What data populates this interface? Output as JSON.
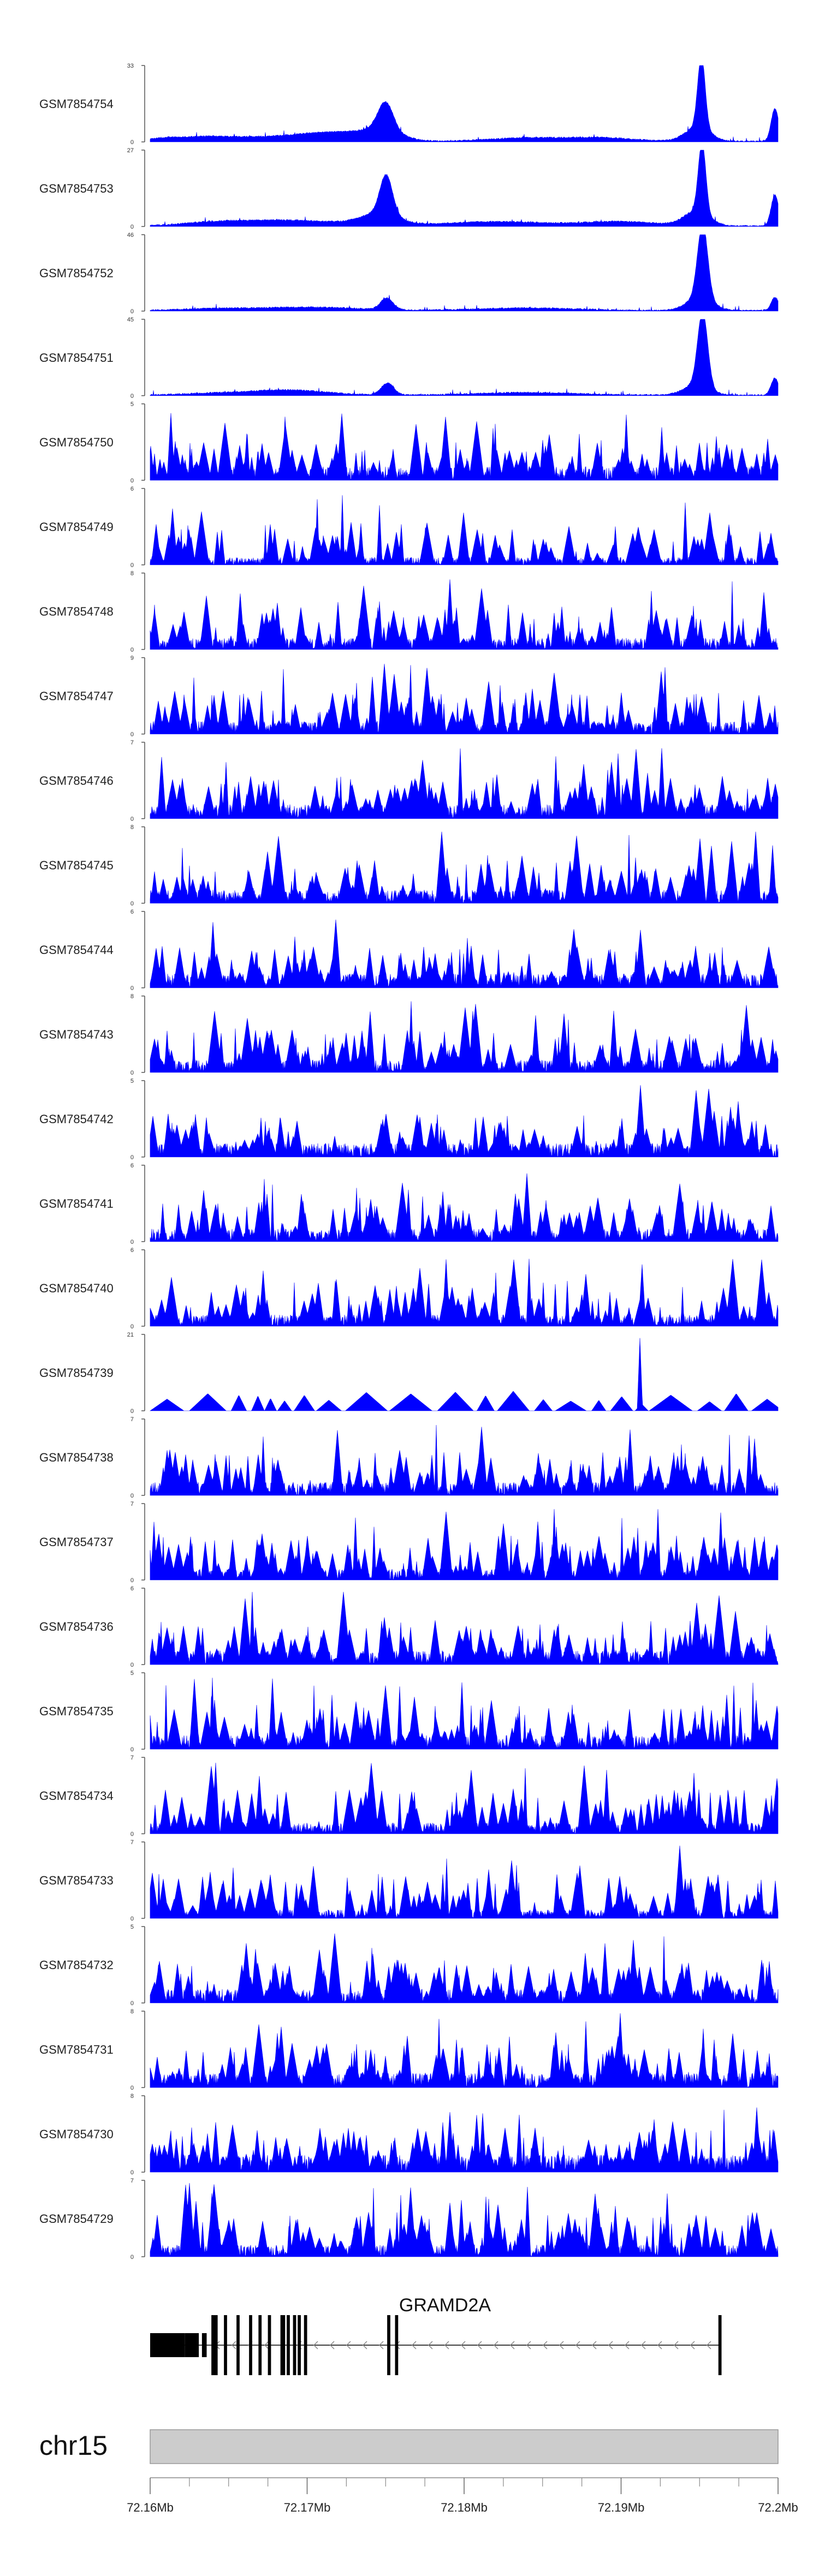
{
  "chart_data": {
    "type": "area",
    "region": {
      "chrom": "chr15",
      "start_mb": 72.16,
      "end_mb": 72.2
    },
    "colors": {
      "signal": "#0000ff",
      "axis": "#555555",
      "gene": "#000000",
      "ideogram": "#cccccc"
    },
    "tracks": [
      {
        "name": "GSM7854754",
        "ymax": 33,
        "peaks": [
          [
            0.02,
            1,
            0.02
          ],
          [
            0.08,
            1.5,
            0.04
          ],
          [
            0.2,
            2,
            0.08
          ],
          [
            0.3,
            3,
            0.05
          ],
          [
            0.375,
            12,
            0.012
          ],
          [
            0.37,
            4,
            0.03
          ],
          [
            0.6,
            1.5,
            0.06
          ],
          [
            0.72,
            1.5,
            0.05
          ],
          [
            0.878,
            31,
            0.006
          ],
          [
            0.872,
            6,
            0.02
          ],
          [
            0.995,
            14,
            0.006
          ]
        ]
      },
      {
        "name": "GSM7854753",
        "ymax": 27,
        "peaks": [
          [
            0.1,
            1,
            0.05
          ],
          [
            0.22,
            2,
            0.08
          ],
          [
            0.376,
            14,
            0.01
          ],
          [
            0.365,
            4,
            0.03
          ],
          [
            0.55,
            1.5,
            0.08
          ],
          [
            0.75,
            1.5,
            0.06
          ],
          [
            0.879,
            25,
            0.006
          ],
          [
            0.87,
            5,
            0.02
          ],
          [
            0.995,
            11,
            0.006
          ]
        ]
      },
      {
        "name": "GSM7854752",
        "ymax": 46,
        "peaks": [
          [
            0.1,
            1,
            0.05
          ],
          [
            0.25,
            2,
            0.08
          ],
          [
            0.377,
            7,
            0.01
          ],
          [
            0.6,
            1.5,
            0.08
          ],
          [
            0.88,
            45,
            0.008
          ],
          [
            0.875,
            8,
            0.02
          ],
          [
            0.995,
            8,
            0.006
          ]
        ]
      },
      {
        "name": "GSM7854751",
        "ymax": 45,
        "peaks": [
          [
            0.1,
            1,
            0.05
          ],
          [
            0.22,
            3,
            0.06
          ],
          [
            0.378,
            7,
            0.01
          ],
          [
            0.6,
            1.5,
            0.08
          ],
          [
            0.88,
            44,
            0.008
          ],
          [
            0.87,
            6,
            0.02
          ],
          [
            0.995,
            10,
            0.006
          ]
        ]
      },
      {
        "name": "GSM7854750",
        "ymax": 5,
        "noise": true,
        "count": 140,
        "base": 0.9,
        "spike": 4.5
      },
      {
        "name": "GSM7854749",
        "ymax": 6,
        "noise": true,
        "count": 90,
        "base": 0.6,
        "spike": 5.5
      },
      {
        "name": "GSM7854748",
        "ymax": 8,
        "noise": true,
        "count": 110,
        "base": 1.2,
        "spike": 7.5
      },
      {
        "name": "GSM7854747",
        "ymax": 9,
        "noise": true,
        "count": 130,
        "base": 1.5,
        "spike": 8.5
      },
      {
        "name": "GSM7854746",
        "ymax": 7,
        "noise": true,
        "count": 120,
        "base": 1.3,
        "spike": 6.5
      },
      {
        "name": "GSM7854745",
        "ymax": 8,
        "noise": true,
        "count": 120,
        "base": 1.4,
        "spike": 7.5
      },
      {
        "name": "GSM7854744",
        "ymax": 6,
        "noise": true,
        "count": 120,
        "base": 1.1,
        "spike": 5.5
      },
      {
        "name": "GSM7854743",
        "ymax": 8,
        "noise": true,
        "count": 120,
        "base": 1.3,
        "spike": 7.5
      },
      {
        "name": "GSM7854742",
        "ymax": 5,
        "noise": true,
        "count": 120,
        "base": 0.9,
        "spike": 4.8
      },
      {
        "name": "GSM7854741",
        "ymax": 6,
        "noise": true,
        "count": 115,
        "base": 1.0,
        "spike": 5.8
      },
      {
        "name": "GSM7854740",
        "ymax": 6,
        "noise": true,
        "count": 100,
        "base": 0.9,
        "spike": 5.8
      },
      {
        "name": "GSM7854739",
        "ymax": 21,
        "noise": false,
        "triangles": true,
        "count": 34,
        "base": 4.5,
        "spike": 20
      },
      {
        "name": "GSM7854738",
        "ymax": 7,
        "noise": true,
        "count": 120,
        "base": 1.2,
        "spike": 6.8
      },
      {
        "name": "GSM7854737",
        "ymax": 7,
        "noise": true,
        "count": 130,
        "base": 1.0,
        "spike": 6.8
      },
      {
        "name": "GSM7854736",
        "ymax": 6,
        "noise": true,
        "count": 120,
        "base": 1.1,
        "spike": 5.8
      },
      {
        "name": "GSM7854735",
        "ymax": 5,
        "noise": true,
        "count": 120,
        "base": 0.9,
        "spike": 4.8
      },
      {
        "name": "GSM7854734",
        "ymax": 7,
        "noise": true,
        "count": 110,
        "base": 1.0,
        "spike": 6.8
      },
      {
        "name": "GSM7854733",
        "ymax": 7,
        "noise": true,
        "count": 110,
        "base": 0.8,
        "spike": 6.8
      },
      {
        "name": "GSM7854732",
        "ymax": 5,
        "noise": true,
        "count": 120,
        "base": 0.9,
        "spike": 4.8
      },
      {
        "name": "GSM7854731",
        "ymax": 8,
        "noise": true,
        "count": 130,
        "base": 1.5,
        "spike": 7.8
      },
      {
        "name": "GSM7854730",
        "ymax": 8,
        "noise": true,
        "count": 140,
        "base": 1.8,
        "spike": 7.8
      },
      {
        "name": "GSM7854729",
        "ymax": 7,
        "noise": true,
        "count": 120,
        "base": 1.1,
        "spike": 6.8
      }
    ],
    "gene": {
      "name": "GRAMD2A",
      "strand": "-",
      "start_mb": 72.16,
      "end_mb": 72.1963,
      "exons": [
        [
          72.16,
          72.1622
        ],
        [
          72.1622,
          72.1631
        ],
        [
          72.1633,
          72.1636
        ],
        [
          72.1639,
          72.1643
        ],
        [
          72.1647,
          72.1649
        ],
        [
          72.1655,
          72.1657
        ],
        [
          72.1663,
          72.1665
        ],
        [
          72.1669,
          72.1671
        ],
        [
          72.1675,
          72.1677
        ],
        [
          72.1683,
          72.1686
        ],
        [
          72.1687,
          72.1689
        ],
        [
          72.1691,
          72.1693
        ],
        [
          72.1694,
          72.1696
        ],
        [
          72.1698,
          72.17
        ],
        [
          72.1751,
          72.1753
        ],
        [
          72.1756,
          72.1758
        ],
        [
          72.1962,
          72.1964
        ]
      ]
    },
    "axis": {
      "tick_labels": [
        "72.16Mb",
        "72.17Mb",
        "72.18Mb",
        "72.19Mb",
        "72.2Mb"
      ],
      "tick_values": [
        72.16,
        72.17,
        72.18,
        72.19,
        72.2
      ],
      "minor_ticks_per_major": 4
    }
  }
}
